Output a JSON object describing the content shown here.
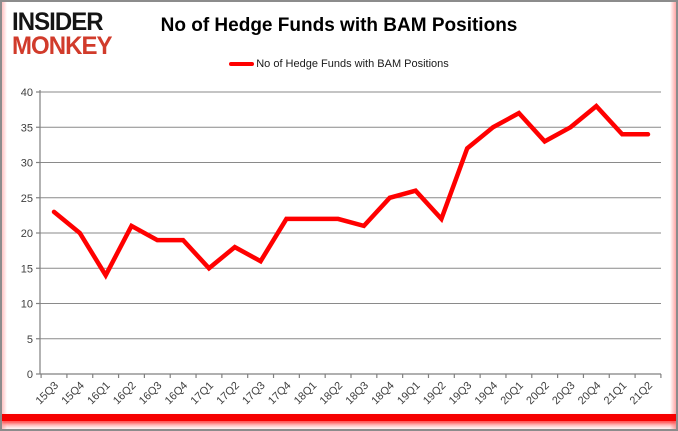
{
  "header": {
    "logo_line1": "INSIDER",
    "logo_line2": "MONKEY",
    "title": "No of Hedge Funds with BAM Positions"
  },
  "legend": {
    "label": "No of Hedge Funds with BAM Positions",
    "swatch_color": "#ff0000"
  },
  "colors": {
    "accent_red": "#ff0000",
    "logo_red": "#d13b2b",
    "border_gray": "#8c8c8c",
    "grid_gray": "#8a8a8a",
    "axis_gray": "#808080",
    "tick_label_gray": "#404040"
  },
  "chart_data": {
    "type": "line",
    "title": "No of Hedge Funds with BAM Positions",
    "categories": [
      "15Q3",
      "15Q4",
      "16Q1",
      "16Q2",
      "16Q3",
      "16Q4",
      "17Q1",
      "17Q2",
      "17Q3",
      "17Q4",
      "18Q1",
      "18Q2",
      "18Q3",
      "18Q4",
      "19Q1",
      "19Q2",
      "19Q3",
      "19Q4",
      "20Q1",
      "20Q2",
      "20Q3",
      "20Q4",
      "21Q1",
      "21Q2"
    ],
    "series": [
      {
        "name": "No of Hedge Funds with BAM Positions",
        "color": "#ff0000",
        "values": [
          23,
          20,
          14,
          21,
          19,
          19,
          15,
          18,
          16,
          22,
          22,
          22,
          21,
          25,
          26,
          22,
          32,
          35,
          37,
          33,
          35,
          38,
          34,
          34
        ]
      }
    ],
    "xlabel": "",
    "ylabel": "",
    "ylim": [
      0,
      40
    ],
    "ytick_step": 5,
    "ytick_labels": [
      "0",
      "5",
      "10",
      "15",
      "20",
      "25",
      "30",
      "35",
      "40"
    ],
    "grid": "horizontal",
    "legend_position": "top"
  }
}
